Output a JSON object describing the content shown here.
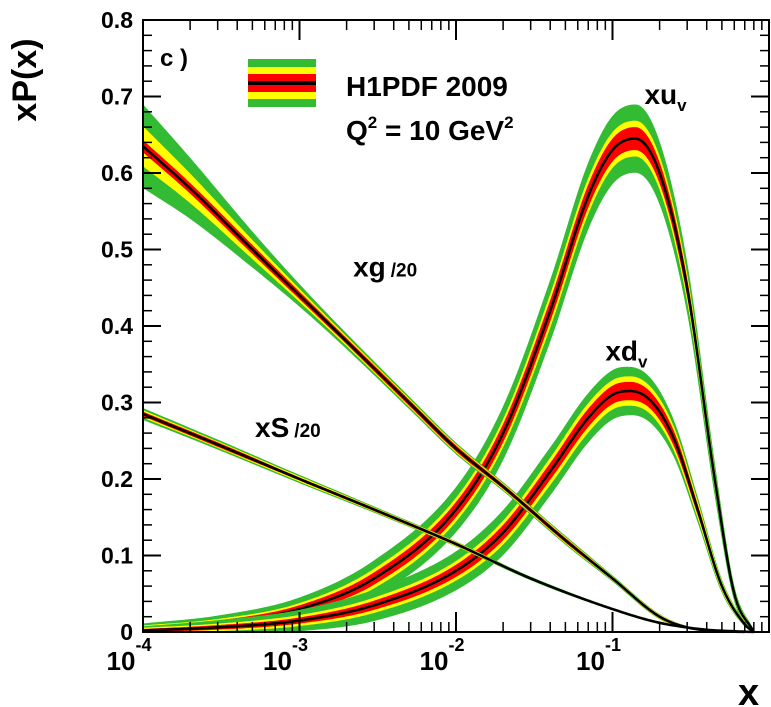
{
  "chart_data": {
    "type": "line",
    "panel_label": "c )",
    "ylabel": "xP(x)",
    "xlabel": "x",
    "x_scale": "log",
    "xlim": [
      0.0001,
      1
    ],
    "ylim": [
      0,
      0.8
    ],
    "x_ticks": [
      {
        "base": "10",
        "exp": "-4",
        "value": 0.0001
      },
      {
        "base": "10",
        "exp": "-3",
        "value": 0.001
      },
      {
        "base": "10",
        "exp": "-2",
        "value": 0.01
      },
      {
        "base": "10",
        "exp": "-1",
        "value": 0.1
      }
    ],
    "y_ticks": [
      "0",
      "0.1",
      "0.2",
      "0.3",
      "0.4",
      "0.5",
      "0.6",
      "0.7",
      "0.8"
    ],
    "y_tick_values": [
      0,
      0.1,
      0.2,
      0.3,
      0.4,
      0.5,
      0.6,
      0.7,
      0.8
    ],
    "legend": {
      "title": "H1PDF 2009",
      "q2_label": "Q",
      "q2_exp": "2",
      "q2_value": " = 10 GeV",
      "q2_unit_exp": "2",
      "position": "top-center",
      "band_colors": [
        "#33bb33",
        "#ffff00",
        "#ff0000",
        "#000000"
      ]
    },
    "colors": {
      "model_band": "#33bb33",
      "param_band": "#ffff00",
      "exp_band": "#ff0000",
      "central": "#000000"
    },
    "series": [
      {
        "name": "xu",
        "sub": "v",
        "suffix": "",
        "x": [
          0.0001,
          0.0003,
          0.001,
          0.003,
          0.01,
          0.02,
          0.04,
          0.07,
          0.1,
          0.14,
          0.2,
          0.3,
          0.45,
          0.6,
          0.8
        ],
        "y": [
          0.005,
          0.012,
          0.03,
          0.07,
          0.16,
          0.26,
          0.42,
          0.57,
          0.63,
          0.645,
          0.6,
          0.45,
          0.2,
          0.05,
          0.0
        ],
        "exp_err": [
          0.002,
          0.003,
          0.005,
          0.008,
          0.01,
          0.012,
          0.014,
          0.015,
          0.015,
          0.015,
          0.014,
          0.012,
          0.008,
          0.004,
          0.001
        ],
        "par_err": [
          0.003,
          0.004,
          0.006,
          0.01,
          0.012,
          0.014,
          0.017,
          0.018,
          0.018,
          0.018,
          0.017,
          0.014,
          0.01,
          0.005,
          0.001
        ],
        "mod_err": [
          0.005,
          0.008,
          0.013,
          0.02,
          0.025,
          0.03,
          0.034,
          0.037,
          0.038,
          0.038,
          0.035,
          0.028,
          0.018,
          0.008,
          0.002
        ]
      },
      {
        "name": "xd",
        "sub": "v",
        "suffix": "",
        "x": [
          0.0001,
          0.0003,
          0.001,
          0.003,
          0.01,
          0.02,
          0.04,
          0.07,
          0.1,
          0.13,
          0.18,
          0.25,
          0.35,
          0.5,
          0.7,
          0.8
        ],
        "y": [
          0.002,
          0.006,
          0.015,
          0.035,
          0.08,
          0.13,
          0.21,
          0.28,
          0.31,
          0.315,
          0.3,
          0.25,
          0.16,
          0.06,
          0.01,
          0.0
        ],
        "exp_err": [
          0.002,
          0.003,
          0.004,
          0.006,
          0.008,
          0.01,
          0.011,
          0.012,
          0.012,
          0.012,
          0.011,
          0.01,
          0.007,
          0.004,
          0.001,
          0.0
        ],
        "par_err": [
          0.003,
          0.004,
          0.006,
          0.008,
          0.01,
          0.012,
          0.014,
          0.015,
          0.015,
          0.015,
          0.014,
          0.012,
          0.009,
          0.005,
          0.002,
          0.001
        ],
        "mod_err": [
          0.004,
          0.008,
          0.012,
          0.018,
          0.022,
          0.025,
          0.026,
          0.026,
          0.026,
          0.025,
          0.023,
          0.018,
          0.012,
          0.006,
          0.002,
          0.001
        ]
      },
      {
        "name": "xg",
        "sub": "",
        "suffix": "/20",
        "x": [
          0.0001,
          0.0002,
          0.0005,
          0.001,
          0.002,
          0.005,
          0.01,
          0.02,
          0.05,
          0.1,
          0.2,
          0.3,
          0.5,
          0.7
        ],
        "y": [
          0.635,
          0.58,
          0.5,
          0.44,
          0.38,
          0.3,
          0.24,
          0.19,
          0.12,
          0.07,
          0.02,
          0.006,
          0.001,
          0.0
        ],
        "exp_err": [
          0.008,
          0.007,
          0.006,
          0.005,
          0.004,
          0.004,
          0.004,
          0.003,
          0.003,
          0.002,
          0.002,
          0.001,
          0.0,
          0.0
        ],
        "par_err": [
          0.025,
          0.018,
          0.011,
          0.007,
          0.005,
          0.004,
          0.004,
          0.003,
          0.003,
          0.002,
          0.002,
          0.001,
          0.0,
          0.0
        ],
        "mod_err": [
          0.048,
          0.035,
          0.02,
          0.012,
          0.008,
          0.006,
          0.005,
          0.004,
          0.004,
          0.003,
          0.002,
          0.001,
          0.0,
          0.0
        ]
      },
      {
        "name": "xS",
        "sub": "",
        "suffix": "/20",
        "x": [
          0.0001,
          0.0003,
          0.001,
          0.003,
          0.01,
          0.03,
          0.1,
          0.2,
          0.4,
          0.6,
          0.8
        ],
        "y": [
          0.285,
          0.245,
          0.2,
          0.16,
          0.115,
          0.07,
          0.03,
          0.012,
          0.003,
          0.001,
          0.0
        ],
        "exp_err": [
          0.003,
          0.003,
          0.002,
          0.002,
          0.002,
          0.001,
          0.001,
          0.001,
          0.0,
          0.0,
          0.0
        ],
        "par_err": [
          0.004,
          0.003,
          0.003,
          0.002,
          0.002,
          0.001,
          0.001,
          0.001,
          0.0,
          0.0,
          0.0
        ],
        "mod_err": [
          0.006,
          0.005,
          0.004,
          0.003,
          0.002,
          0.002,
          0.001,
          0.001,
          0.0,
          0.0,
          0.0
        ]
      }
    ],
    "curve_labels": [
      {
        "series": "xu",
        "x": 0.16,
        "y": 0.69
      },
      {
        "series": "xd",
        "x": 0.09,
        "y": 0.355
      },
      {
        "series": "xg",
        "x": 0.0022,
        "y": 0.465
      },
      {
        "series": "xS",
        "x": 0.00052,
        "y": 0.255
      }
    ]
  }
}
